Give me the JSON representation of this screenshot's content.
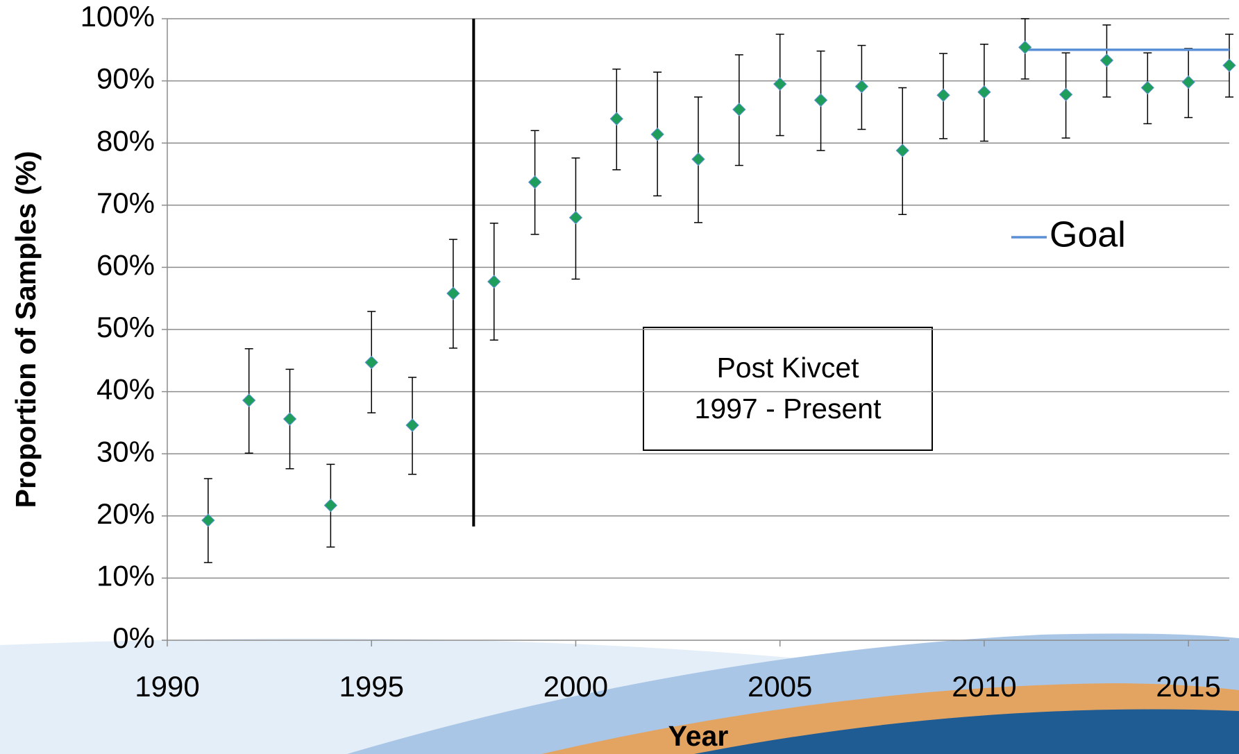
{
  "chart_data": {
    "type": "errorbar-scatter",
    "x_label": "Year",
    "y_label": "Proportion of Samples (%)",
    "x": [
      1991,
      1992,
      1993,
      1994,
      1995,
      1996,
      1997,
      1998,
      1999,
      2000,
      2001,
      2002,
      2003,
      2004,
      2005,
      2006,
      2007,
      2008,
      2009,
      2010,
      2011,
      2012,
      2013,
      2014,
      2015,
      2016
    ],
    "values": [
      19.3,
      38.6,
      35.6,
      21.7,
      44.7,
      34.6,
      55.8,
      57.7,
      73.7,
      68.0,
      83.9,
      81.4,
      77.4,
      85.4,
      89.5,
      86.9,
      89.1,
      78.8,
      87.7,
      88.2,
      95.4,
      87.8,
      93.3,
      88.9,
      89.8,
      92.5
    ],
    "upper": [
      26.0,
      46.9,
      43.6,
      28.3,
      52.9,
      42.3,
      64.5,
      67.1,
      82.0,
      77.6,
      91.9,
      91.4,
      87.4,
      94.2,
      97.5,
      94.8,
      95.7,
      88.9,
      94.4,
      95.9,
      100.0,
      94.5,
      99.0,
      94.5,
      95.2,
      97.5
    ],
    "lower": [
      12.5,
      30.1,
      27.6,
      15.0,
      36.6,
      26.7,
      47.0,
      48.3,
      65.3,
      58.1,
      75.7,
      71.5,
      67.2,
      76.4,
      81.2,
      78.8,
      82.2,
      68.5,
      80.7,
      80.3,
      90.3,
      80.8,
      87.4,
      83.1,
      84.1,
      87.4
    ],
    "color": "#1e9e5a",
    "series": [
      {
        "name": "Goal",
        "color": "#5b8fd6",
        "x": [
          2011,
          2016
        ],
        "values": [
          95,
          95
        ]
      }
    ],
    "vlines": [
      {
        "x": 1997.5,
        "y": [
          18.3,
          100
        ]
      }
    ],
    "annotation": [
      "Post Kivcet",
      "1997 - Present"
    ],
    "xlim": [
      1990,
      2016
    ],
    "xticks": [
      1990,
      1995,
      2000,
      2005,
      2010,
      2015
    ],
    "ylim": [
      0,
      100
    ],
    "yticks": [
      {
        "value": 0,
        "label": "0%"
      },
      {
        "value": 10,
        "label": "10%"
      },
      {
        "value": 20,
        "label": "20%"
      },
      {
        "value": 30,
        "label": "30%"
      },
      {
        "value": 40,
        "label": "40%"
      },
      {
        "value": 50,
        "label": "50%"
      },
      {
        "value": 60,
        "label": "60%"
      },
      {
        "value": 70,
        "label": "70%"
      },
      {
        "value": 80,
        "label": "80%"
      },
      {
        "value": 90,
        "label": "90%"
      },
      {
        "value": 100,
        "label": "100%"
      }
    ],
    "grid": true
  }
}
